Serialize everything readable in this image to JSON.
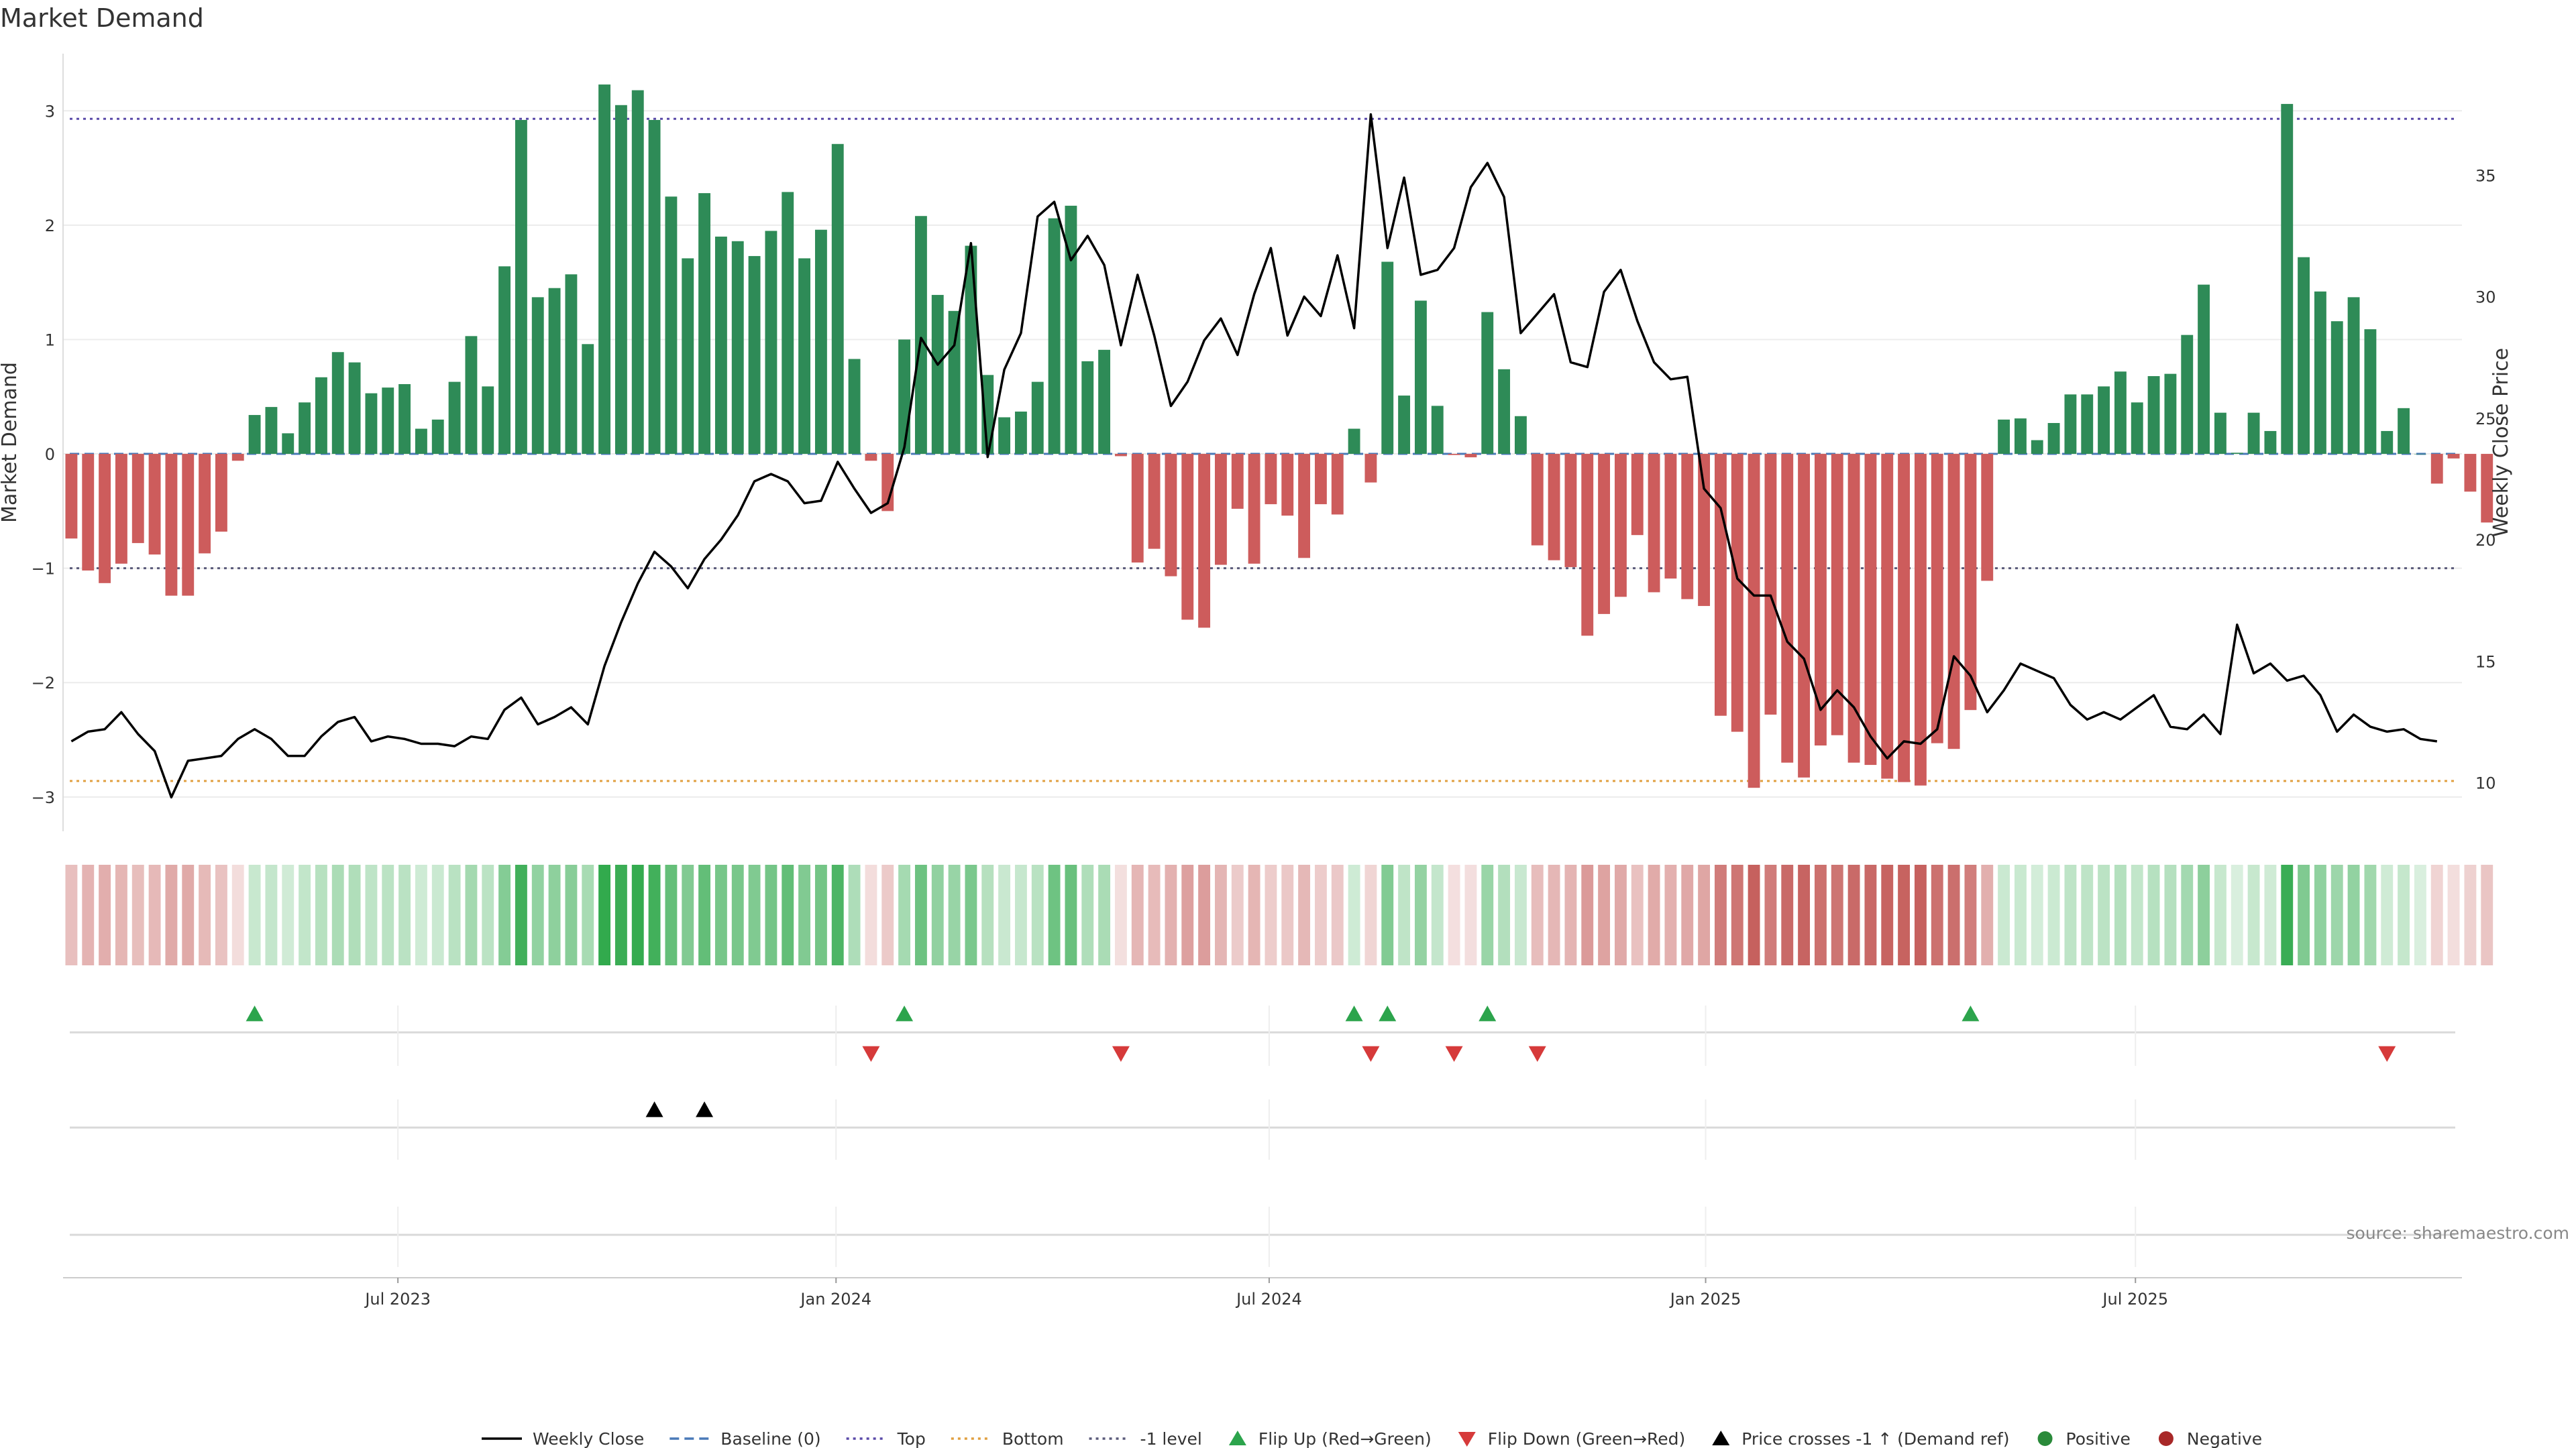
{
  "chart_data": {
    "type": "bar",
    "title": "Market Demand",
    "ylabel": "Market Demand",
    "y2label": "Weekly Close Price",
    "ylim": [
      -3.3,
      3.5
    ],
    "y2lim": [
      8,
      40
    ],
    "yticks": [
      3,
      2,
      1,
      0,
      -1,
      -2,
      -3
    ],
    "ytick_labels": [
      "3",
      "2",
      "1",
      "0",
      "−1",
      "−2",
      "−3"
    ],
    "y2ticks": [
      35,
      30,
      25,
      20,
      15,
      10
    ],
    "y2tick_labels": [
      "35",
      "30",
      "25",
      "20",
      "15",
      "10"
    ],
    "x_range": [
      -0.5,
      143.5
    ],
    "xticks": [
      {
        "label": "Jul 2023",
        "pos": 19.6
      },
      {
        "label": "Jan 2024",
        "pos": 45.9
      },
      {
        "label": "Jul 2024",
        "pos": 71.9
      },
      {
        "label": "Jan 2025",
        "pos": 98.1
      },
      {
        "label": "Jul 2025",
        "pos": 123.9
      }
    ],
    "reference_lines": {
      "top": 2.93,
      "bottom": -2.86,
      "minus_one_level": -1.0,
      "baseline": 0
    },
    "demand": [
      -0.74,
      -1.02,
      -1.13,
      -0.96,
      -0.78,
      -0.88,
      -1.24,
      -1.24,
      -0.87,
      -0.68,
      -0.06,
      0.34,
      0.41,
      0.18,
      0.45,
      0.67,
      0.89,
      0.8,
      0.53,
      0.58,
      0.61,
      0.22,
      0.3,
      0.63,
      1.03,
      0.59,
      1.64,
      2.92,
      1.37,
      1.45,
      1.57,
      0.96,
      3.23,
      3.05,
      3.18,
      2.92,
      2.25,
      1.71,
      2.28,
      1.9,
      1.86,
      1.73,
      1.95,
      2.29,
      1.71,
      1.96,
      2.71,
      0.83,
      -0.06,
      -0.5,
      1.0,
      2.08,
      1.39,
      1.25,
      1.82,
      0.69,
      0.32,
      0.37,
      0.63,
      2.06,
      2.17,
      0.81,
      0.91,
      -0.02,
      -0.95,
      -0.83,
      -1.07,
      -1.45,
      -1.52,
      -0.97,
      -0.48,
      -0.96,
      -0.44,
      -0.54,
      -0.91,
      -0.44,
      -0.53,
      0.22,
      -0.25,
      1.68,
      0.51,
      1.34,
      0.42,
      -0.01,
      -0.03,
      1.24,
      0.74,
      0.33,
      -0.8,
      -0.93,
      -0.99,
      -1.59,
      -1.4,
      -1.25,
      -0.71,
      -1.21,
      -1.09,
      -1.27,
      -1.33,
      -2.29,
      -2.43,
      -2.92,
      -2.28,
      -2.7,
      -2.83,
      -2.55,
      -2.46,
      -2.7,
      -2.72,
      -2.84,
      -2.87,
      -2.9,
      -2.53,
      -2.58,
      -2.24,
      -1.11,
      0.3,
      0.31,
      0.12,
      0.27,
      0.52,
      0.52,
      0.59,
      0.72,
      0.45,
      0.68,
      0.7,
      1.04,
      1.48,
      0.36,
      0.01,
      0.36,
      0.2,
      3.06,
      1.72,
      1.42,
      1.16,
      1.37,
      1.09,
      0.2,
      0.4,
      0.0,
      -0.26,
      -0.04,
      -0.33,
      -0.6
    ],
    "close": [
      11.7,
      12.1,
      12.2,
      12.9,
      12.0,
      11.3,
      9.4,
      10.9,
      11.0,
      11.1,
      11.8,
      12.2,
      11.8,
      11.1,
      11.1,
      11.9,
      12.5,
      12.7,
      11.7,
      11.9,
      11.8,
      11.6,
      11.6,
      11.5,
      11.9,
      11.8,
      13.0,
      13.5,
      12.4,
      12.7,
      13.1,
      12.4,
      14.8,
      16.6,
      18.2,
      19.5,
      18.9,
      18.0,
      19.2,
      20.0,
      21.0,
      22.4,
      22.7,
      22.4,
      21.5,
      21.6,
      23.2,
      22.1,
      21.1,
      21.5,
      23.8,
      28.3,
      27.2,
      28.0,
      32.2,
      23.4,
      27.0,
      28.5,
      33.3,
      33.9,
      31.5,
      32.5,
      31.3,
      28.0,
      30.9,
      28.4,
      25.5,
      26.5,
      28.2,
      29.1,
      27.6,
      30.1,
      32.0,
      28.4,
      30.0,
      29.2,
      31.7,
      28.7,
      37.5,
      32.0,
      34.9,
      30.9,
      31.1,
      32.0,
      34.5,
      35.5,
      34.1,
      28.5,
      29.3,
      30.1,
      27.3,
      27.1,
      30.2,
      31.1,
      29.0,
      27.3,
      26.6,
      26.7,
      22.1,
      21.3,
      18.4,
      17.7,
      17.7,
      15.8,
      15.1,
      13.0,
      13.8,
      13.1,
      11.9,
      11.0,
      11.7,
      11.6,
      12.2,
      15.2,
      14.4,
      12.9,
      13.8,
      14.9,
      14.6,
      14.3,
      13.2,
      12.6,
      12.9,
      12.6,
      13.1,
      13.6,
      12.3,
      12.2,
      12.8,
      12.0,
      16.5,
      14.5,
      14.9,
      14.2,
      14.4,
      13.6,
      12.1,
      12.8,
      12.3,
      12.1,
      12.2,
      11.8,
      11.7
    ],
    "flip_up": [
      11,
      50,
      77,
      79,
      85,
      114
    ],
    "flip_down": [
      48,
      63,
      78,
      83,
      88,
      139
    ],
    "price_crosses": [
      35,
      38
    ]
  },
  "legend": [
    {
      "label": "Weekly Close",
      "kind": "solid-line",
      "color": "#000000"
    },
    {
      "label": "Baseline (0)",
      "kind": "dashed-line",
      "color": "#4a7ab8"
    },
    {
      "label": "Top",
      "kind": "dotted-line",
      "color": "#5a4aa8"
    },
    {
      "label": "Bottom",
      "kind": "dotted-line",
      "color": "#e0a040"
    },
    {
      "label": "-1 level",
      "kind": "dotted-line",
      "color": "#5a5a7a"
    },
    {
      "label": "Flip Up (Red→Green)",
      "kind": "triangle-up",
      "color": "#2ca44c"
    },
    {
      "label": "Flip Down (Green→Red)",
      "kind": "triangle-down",
      "color": "#d63a3a"
    },
    {
      "label": "Price crosses -1 ↑ (Demand ref)",
      "kind": "triangle-up",
      "color": "#000000"
    },
    {
      "label": "Positive",
      "kind": "dot",
      "color": "#2a8a3a"
    },
    {
      "label": "Negative",
      "kind": "dot",
      "color": "#a82828"
    }
  ],
  "colors": {
    "positive_bar": "#2e8b57",
    "negative_bar": "#cd5c5c",
    "close_line": "#000000",
    "flip_up": "#2ca44c",
    "flip_down": "#d63a3a",
    "cross_marker": "#000000"
  },
  "source": "source: sharemaestro.com"
}
